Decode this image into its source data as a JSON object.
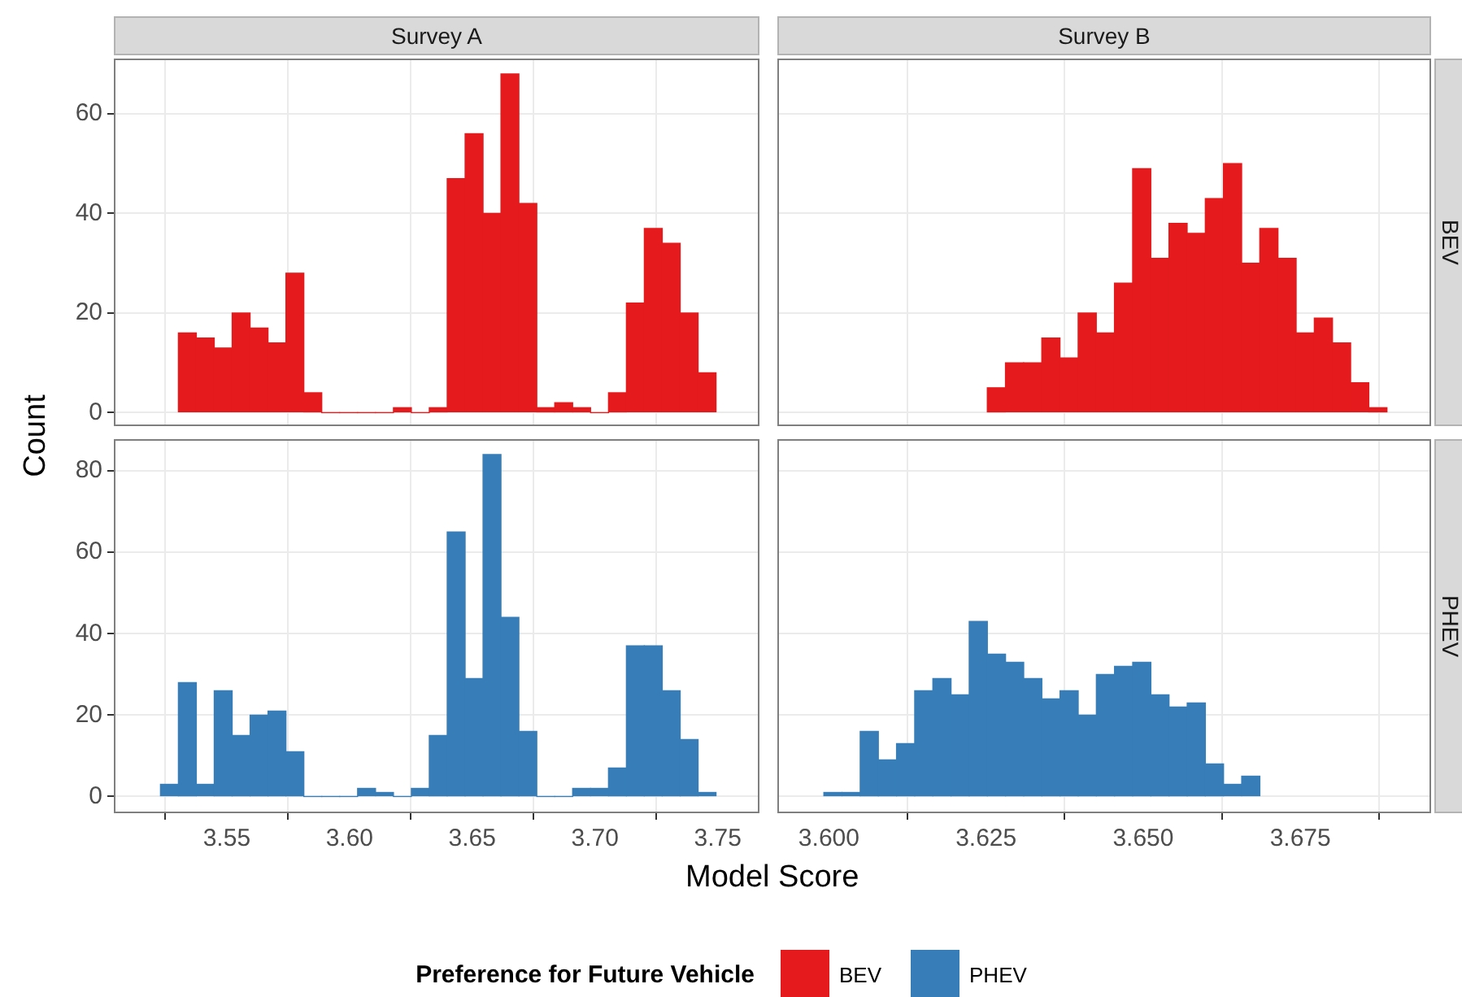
{
  "chart_data": [
    {
      "type": "histogram",
      "title": "Survey A",
      "ylabel": "Count",
      "bins": [
        3.5303,
        3.5376,
        3.5449,
        3.5522,
        3.5595,
        3.5668,
        3.5741,
        3.5814,
        3.5887,
        3.596,
        3.6033,
        3.6106,
        3.6179,
        3.6252,
        3.6325,
        3.6398,
        3.6471,
        3.6544,
        3.6617,
        3.669,
        3.6763,
        3.6836,
        3.6909,
        3.6982,
        3.7055,
        3.7128,
        3.7201,
        3.7274,
        3.7347,
        3.742,
        3.7493
      ],
      "series": [
        {
          "name": "BEV",
          "color": "#e41a1c",
          "values": [
            16,
            15,
            13,
            20,
            17,
            14,
            28,
            4,
            0,
            0,
            0,
            0,
            1,
            0,
            1,
            47,
            56,
            40,
            68,
            42,
            1,
            2,
            1,
            0,
            4,
            22,
            37,
            34,
            20,
            8
          ]
        }
      ],
      "xlim": [
        3.504,
        3.767
      ],
      "ylim": [
        -2.7,
        71.1
      ],
      "xticks": [
        3.55,
        3.6,
        3.65,
        3.7,
        3.75
      ],
      "yticks": [
        0,
        20,
        40,
        60
      ],
      "grid": true,
      "tick_labels": "y",
      "legend": "bottom",
      "legend_title": "Preference for Future Vehicle"
    },
    {
      "type": "histogram",
      "title": "Survey B",
      "y2label": "BEV",
      "bins": [
        3.6252,
        3.62809,
        3.63098,
        3.63387,
        3.63676,
        3.63965,
        3.64254,
        3.64543,
        3.64832,
        3.65121,
        3.6541,
        3.65699,
        3.65988,
        3.66277,
        3.66566,
        3.66855,
        3.67144,
        3.67433,
        3.67722,
        3.68011,
        3.683,
        3.68589,
        3.68878
      ],
      "series": [
        {
          "color": "#e41a1c",
          "values": [
            5,
            10,
            10,
            15,
            11,
            20,
            16,
            26,
            49,
            31,
            38,
            36,
            43,
            50,
            30,
            37,
            31,
            16,
            19,
            14,
            6,
            1
          ]
        }
      ],
      "xlim": [
        3.5918,
        3.6958
      ],
      "ylim": [
        -2.7,
        71.1
      ],
      "xticks": [
        3.6,
        3.625,
        3.65,
        3.675
      ],
      "yticks": [
        0,
        20,
        40,
        60
      ],
      "grid": true,
      "tick_labels": false
    },
    {
      "type": "histogram",
      "xlabel": "Model Score",
      "legend": "bottom",
      "bins": [
        3.523,
        3.5303,
        3.5376,
        3.5449,
        3.5522,
        3.5595,
        3.5668,
        3.5741,
        3.5814,
        3.5887,
        3.596,
        3.6033,
        3.6106,
        3.6179,
        3.6252,
        3.6325,
        3.6398,
        3.6471,
        3.6544,
        3.6617,
        3.669,
        3.6763,
        3.6836,
        3.6909,
        3.6982,
        3.7055,
        3.7128,
        3.7201,
        3.7274,
        3.7347,
        3.742,
        3.7493
      ],
      "series": [
        {
          "name": "PHEV",
          "color": "#377eb8",
          "values": [
            3,
            28,
            3,
            26,
            15,
            20,
            21,
            11,
            0,
            0,
            0,
            2,
            1,
            0,
            2,
            15,
            65,
            29,
            84,
            44,
            16,
            0,
            0,
            2,
            2,
            7,
            37,
            37,
            26,
            14,
            1
          ]
        }
      ],
      "xlim": [
        3.504,
        3.767
      ],
      "ylim": [
        -4.1,
        87.8
      ],
      "xticks": [
        3.55,
        {
          "value": 3.6,
          "label": "3.60"
        },
        3.65,
        {
          "value": 3.7,
          "label": "3.70"
        },
        3.75
      ],
      "yticks": [
        0,
        20,
        40,
        60,
        80
      ],
      "grid": true
    },
    {
      "type": "histogram",
      "y2label": "PHEV",
      "bins": [
        3.5992,
        3.60209,
        3.60498,
        3.60787,
        3.61076,
        3.61365,
        3.61654,
        3.61943,
        3.62232,
        3.62521,
        3.6281,
        3.63099,
        3.63388,
        3.63677,
        3.63966,
        3.64255,
        3.64544,
        3.64833,
        3.65122,
        3.65411,
        3.657,
        3.65989,
        3.66278,
        3.66567,
        3.66856
      ],
      "series": [
        {
          "color": "#377eb8",
          "values": [
            1,
            1,
            16,
            9,
            13,
            26,
            29,
            25,
            43,
            35,
            33,
            29,
            24,
            26,
            20,
            30,
            32,
            33,
            25,
            22,
            23,
            8,
            3,
            5
          ]
        }
      ],
      "xlim": [
        3.5918,
        3.6958
      ],
      "ylim": [
        -4.1,
        87.8
      ],
      "xticks": [
        {
          "value": 3.6,
          "label": "3.600"
        },
        3.625,
        {
          "value": 3.65,
          "label": "3.650"
        },
        3.675
      ],
      "yticks": [
        0,
        20,
        40,
        60,
        80
      ],
      "grid": true,
      "tick_labels": "x"
    }
  ]
}
